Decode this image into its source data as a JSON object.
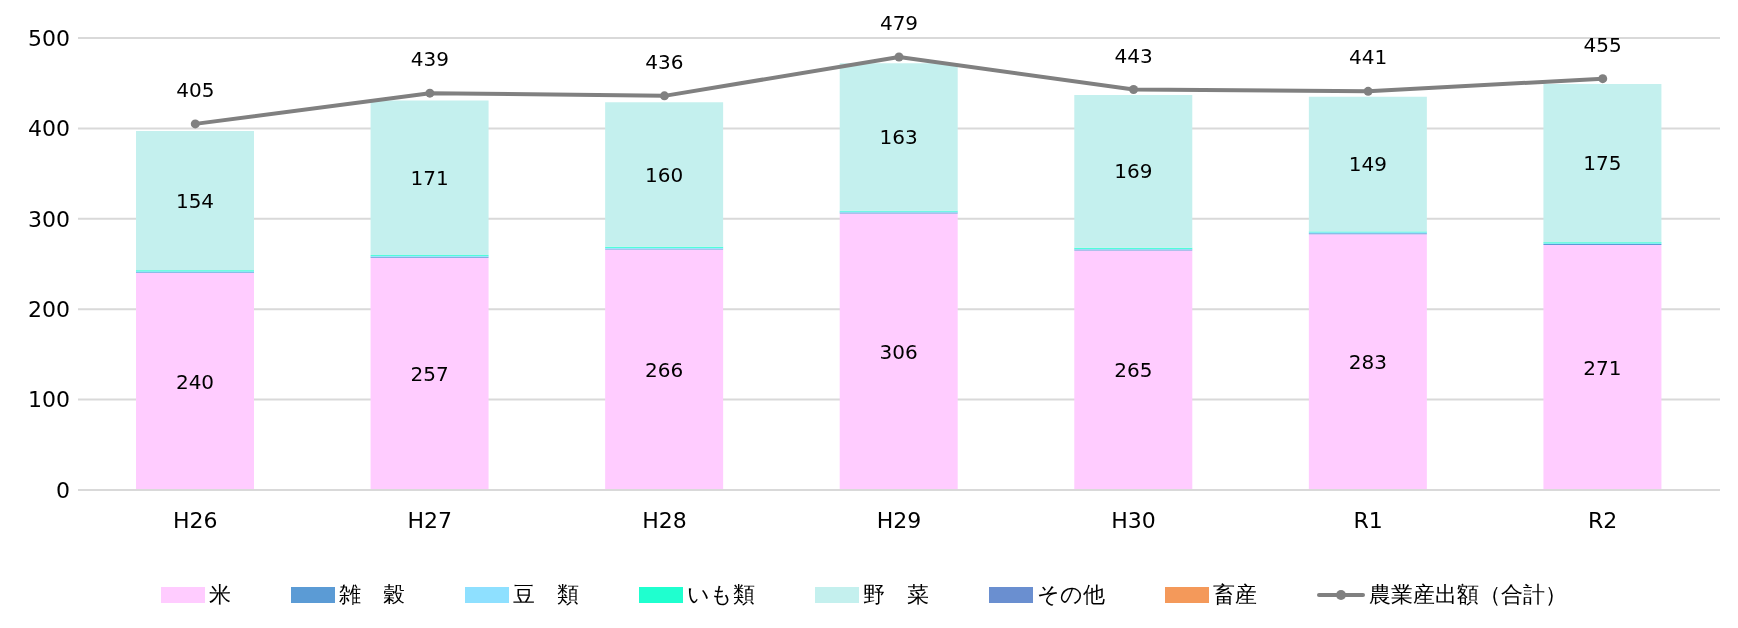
{
  "chart_data": {
    "type": "bar",
    "stacked": true,
    "categories": [
      "H26",
      "H27",
      "H28",
      "H29",
      "H30",
      "R1",
      "R2"
    ],
    "series": [
      {
        "name": "米",
        "color": "#ffccff",
        "values": [
          240,
          257,
          266,
          306,
          265,
          283,
          271
        ],
        "value_labels": [
          "240",
          "257",
          "266",
          "306",
          "265",
          "283",
          "271"
        ]
      },
      {
        "name": "雑　穀",
        "color": "#5b9bd5",
        "values": [
          1,
          1,
          1,
          1,
          1,
          1,
          1
        ]
      },
      {
        "name": "豆　類",
        "color": "#8ee0ff",
        "values": [
          1,
          1,
          1,
          1,
          1,
          1,
          1
        ]
      },
      {
        "name": "いも類",
        "color": "#1fffcf",
        "values": [
          1,
          1,
          1,
          1,
          1,
          1,
          1
        ]
      },
      {
        "name": "野　菜",
        "color": "#c4f0ee",
        "values": [
          154,
          171,
          160,
          163,
          169,
          149,
          175
        ],
        "value_labels": [
          "154",
          "171",
          "160",
          "163",
          "169",
          "149",
          "175"
        ]
      },
      {
        "name": "その他",
        "color": "#6a8fd0",
        "values": [
          0,
          0,
          0,
          0,
          0,
          0,
          0
        ]
      },
      {
        "name": "畜産",
        "color": "#f4995a",
        "values": [
          0,
          0,
          0,
          0,
          0,
          0,
          0
        ]
      },
      {
        "name": "農業産出額（合計）",
        "type": "line",
        "color": "#808080",
        "values": [
          405,
          439,
          436,
          479,
          443,
          441,
          455
        ],
        "value_labels": [
          "405",
          "439",
          "436",
          "479",
          "443",
          "441",
          "455"
        ],
        "marker": "circle"
      }
    ],
    "ylim": [
      0,
      500
    ],
    "yticks": [
      0,
      100,
      200,
      300,
      400,
      500
    ],
    "grid": "y",
    "legend": "bottom"
  }
}
